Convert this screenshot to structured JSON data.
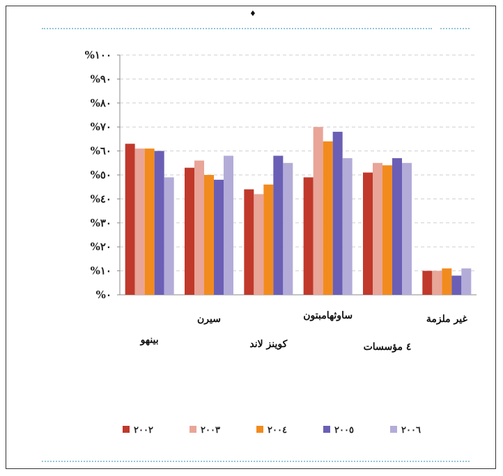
{
  "chart_data": {
    "type": "bar",
    "title": "",
    "xlabel": "",
    "ylabel": "",
    "ylim": [
      0,
      100
    ],
    "yticks": [
      "%٠",
      "%١٠",
      "%٢٠",
      "%٣٠",
      "%٤٠",
      "%٥٠",
      "%٦٠",
      "%٧٠",
      "%٨٠",
      "%٩٠",
      "%١٠٠"
    ],
    "grid": true,
    "legend_position": "bottom",
    "categories": [
      "بينهو",
      "سيرن",
      "كوينز لاند",
      "ساوثهامبتون",
      "٤ مؤسسات",
      "غير ملزمة"
    ],
    "series": [
      {
        "name": "٢٠٠٢",
        "color": "#c0392b",
        "values": [
          63,
          53,
          44,
          49,
          51,
          10
        ]
      },
      {
        "name": "٢٠٠٣",
        "color": "#e8a598",
        "values": [
          61,
          56,
          42,
          70,
          55,
          10
        ]
      },
      {
        "name": "٢٠٠٤",
        "color": "#f28b1e",
        "values": [
          61,
          50,
          46,
          64,
          54,
          11
        ]
      },
      {
        "name": "٢٠٠٥",
        "color": "#6a5fb5",
        "values": [
          60,
          48,
          58,
          68,
          57,
          8
        ]
      },
      {
        "name": "٢٠٠٦",
        "color": "#b3acd8",
        "values": [
          49,
          58,
          55,
          57,
          55,
          11
        ]
      }
    ]
  },
  "decor": {
    "mark": "♦"
  }
}
